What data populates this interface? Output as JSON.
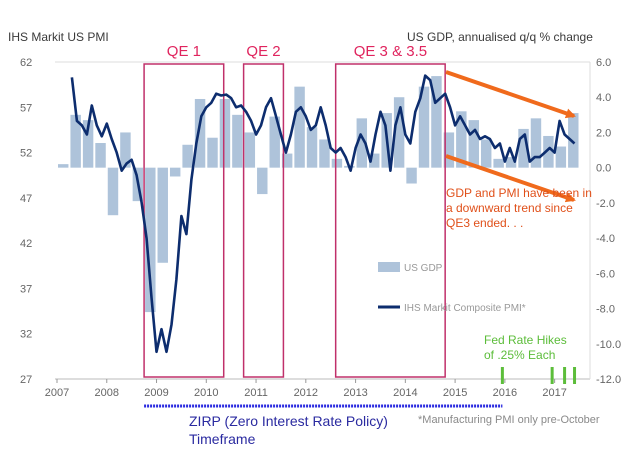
{
  "header": {
    "left_title": "IHS Markit  US  PMI",
    "right_title": "US GDP, annualised q/q % change"
  },
  "colors": {
    "pmi_line": "#0d2d6e",
    "gdp_bars": "#aec3da",
    "qe_boxes": "#c0306a",
    "trend_arrows": "#f06a1c",
    "rate_hikes": "#5cbd3a",
    "zirp_line": "#2a2ae0"
  },
  "chart_data": {
    "type": "bar+line",
    "x_ticks": [
      "2007",
      "2008",
      "2009",
      "2010",
      "2011",
      "2012",
      "2013",
      "2014",
      "2015",
      "2016",
      "2017"
    ],
    "left_axis": {
      "label": "IHS Markit  US  PMI",
      "ticks": [
        "62",
        "57",
        "52",
        "47",
        "42",
        "37",
        "32",
        "27"
      ],
      "range": [
        27,
        62
      ]
    },
    "right_axis": {
      "label": "US GDP, annualised q/q % change",
      "ticks": [
        "6.0",
        "4.0",
        "2.0",
        "0.0",
        "-2.0",
        "-4.0",
        "-6.0",
        "-8.0",
        "-10.0",
        "-12.0"
      ],
      "range": [
        -12,
        6
      ]
    },
    "series": [
      {
        "name": "US GDP",
        "axis": "right",
        "kind": "bar",
        "x": [
          2007.0,
          2007.25,
          2007.5,
          2007.75,
          2008.0,
          2008.25,
          2008.5,
          2008.75,
          2009.0,
          2009.25,
          2009.5,
          2009.75,
          2010.0,
          2010.25,
          2010.5,
          2010.75,
          2011.0,
          2011.25,
          2011.5,
          2011.75,
          2012.0,
          2012.25,
          2012.5,
          2012.75,
          2013.0,
          2013.25,
          2013.5,
          2013.75,
          2014.0,
          2014.25,
          2014.5,
          2014.75,
          2015.0,
          2015.25,
          2015.5,
          2015.75,
          2016.0,
          2016.25,
          2016.5,
          2016.75,
          2017.0,
          2017.25
        ],
        "values": [
          0.2,
          3.0,
          2.7,
          1.4,
          -2.7,
          2.0,
          -1.9,
          -8.2,
          -5.4,
          -0.5,
          1.3,
          3.9,
          1.7,
          3.9,
          3.0,
          2.0,
          -1.5,
          2.9,
          0.8,
          4.6,
          2.3,
          1.6,
          0.5,
          0.1,
          2.8,
          0.8,
          3.1,
          4.0,
          -0.9,
          4.6,
          5.2,
          2.0,
          3.2,
          2.7,
          1.6,
          0.5,
          0.6,
          2.2,
          2.8,
          1.8,
          1.2,
          3.1
        ]
      },
      {
        "name": "IHS Markit Composite PMI*",
        "axis": "left",
        "kind": "line",
        "x": [
          2007.3,
          2007.4,
          2007.5,
          2007.6,
          2007.7,
          2007.8,
          2007.9,
          2008.0,
          2008.1,
          2008.2,
          2008.3,
          2008.4,
          2008.5,
          2008.6,
          2008.7,
          2008.8,
          2008.9,
          2009.0,
          2009.1,
          2009.2,
          2009.3,
          2009.4,
          2009.5,
          2009.6,
          2009.7,
          2009.8,
          2009.9,
          2010.0,
          2010.1,
          2010.2,
          2010.3,
          2010.4,
          2010.5,
          2010.6,
          2010.7,
          2010.8,
          2010.9,
          2011.0,
          2011.1,
          2011.2,
          2011.3,
          2011.4,
          2011.5,
          2011.6,
          2011.7,
          2011.8,
          2011.9,
          2012.0,
          2012.1,
          2012.2,
          2012.3,
          2012.4,
          2012.5,
          2012.6,
          2012.7,
          2012.8,
          2012.9,
          2013.0,
          2013.1,
          2013.2,
          2013.3,
          2013.4,
          2013.5,
          2013.6,
          2013.7,
          2013.8,
          2013.9,
          2014.0,
          2014.1,
          2014.2,
          2014.3,
          2014.4,
          2014.5,
          2014.6,
          2014.7,
          2014.8,
          2014.9,
          2015.0,
          2015.1,
          2015.2,
          2015.3,
          2015.4,
          2015.5,
          2015.6,
          2015.7,
          2015.8,
          2015.9,
          2016.0,
          2016.1,
          2016.2,
          2016.3,
          2016.4,
          2016.5,
          2016.6,
          2016.7,
          2016.8,
          2016.9,
          2017.0,
          2017.1,
          2017.2,
          2017.3,
          2017.4
        ],
        "values": [
          60.3,
          55.5,
          55.0,
          54.0,
          57.2,
          55.0,
          53.8,
          55.2,
          53.5,
          52.0,
          50.0,
          50.8,
          51.2,
          49.5,
          46.5,
          42.5,
          36.0,
          30.0,
          32.5,
          30.0,
          33.0,
          38.0,
          45.0,
          43.0,
          49.0,
          53.0,
          56.0,
          57.0,
          57.5,
          58.5,
          58.3,
          58.4,
          58.0,
          57.0,
          57.2,
          56.5,
          55.5,
          54.0,
          55.0,
          57.0,
          58.0,
          56.0,
          54.0,
          52.0,
          54.0,
          56.5,
          57.0,
          56.0,
          54.5,
          55.0,
          57.0,
          55.0,
          52.5,
          52.0,
          52.5,
          51.5,
          50.0,
          52.5,
          54.0,
          53.0,
          51.0,
          54.0,
          56.5,
          55.0,
          50.0,
          55.0,
          57.0,
          54.0,
          53.0,
          56.5,
          58.0,
          60.5,
          60.0,
          57.5,
          58.0,
          58.5,
          57.0,
          55.0,
          56.0,
          55.0,
          54.0,
          54.5,
          53.5,
          53.8,
          53.5,
          52.5,
          53.0,
          51.0,
          52.5,
          51.0,
          53.5,
          54.0,
          51.0,
          51.5,
          51.5,
          52.0,
          52.5,
          52.0,
          55.5,
          54.0,
          53.5,
          53.0
        ]
      }
    ],
    "regions": [
      {
        "label": "QE 1",
        "x0": 2008.75,
        "x1": 2010.35
      },
      {
        "label": "QE 2",
        "x0": 2010.75,
        "x1": 2011.55
      },
      {
        "label": "QE 3 & 3.5",
        "x0": 2012.6,
        "x1": 2014.8
      }
    ],
    "annotations": {
      "trend_note": "GDP and PMI have been in a downward trend since QE3 ended. . .",
      "rate_hikes": "Fed Rate Hikes of .25% Each",
      "rate_hike_x": [
        2015.95,
        2016.95,
        2017.2,
        2017.4
      ],
      "zirp": "ZIRP (Zero Interest Rate Policy) Timeframe",
      "zirp_range": [
        2008.75,
        2015.95
      ],
      "footnote": "*Manufacturing PMI only pre-October"
    },
    "legend_position": "bottom-center"
  }
}
